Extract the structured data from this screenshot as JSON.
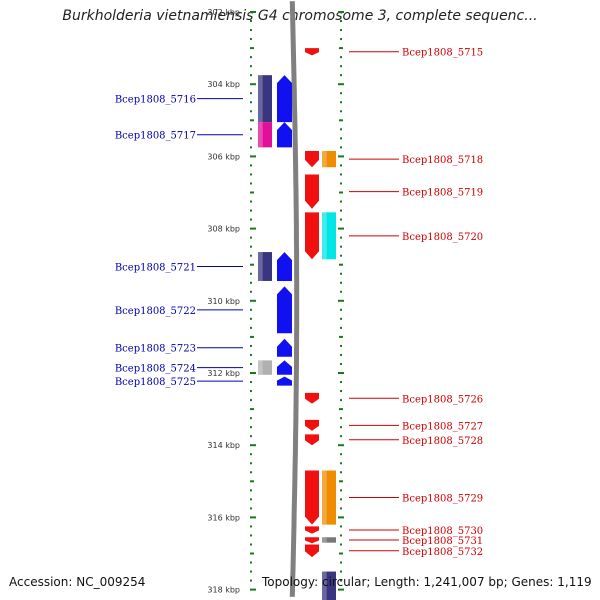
{
  "title": "Burkholderia vietnamiensis G4 chromosome 3, complete sequenc...",
  "footer": {
    "accession": "Accession: NC_009254",
    "topology": "Topology: circular; Length: 1,241,007 bp; Genes: 1,119"
  },
  "axis": {
    "unit": "kbp",
    "ticks": [
      {
        "label": "302 kbp",
        "kbp": 302
      },
      {
        "label": "304 kbp",
        "kbp": 304
      },
      {
        "label": "306 kbp",
        "kbp": 306
      },
      {
        "label": "308 kbp",
        "kbp": 308
      },
      {
        "label": "310 kbp",
        "kbp": 310
      },
      {
        "label": "312 kbp",
        "kbp": 312
      },
      {
        "label": "314 kbp",
        "kbp": 314
      },
      {
        "label": "316 kbp",
        "kbp": 316
      },
      {
        "label": "318 kbp",
        "kbp": 318
      }
    ]
  },
  "colors": {
    "minus_strand": "#1010f0",
    "plus_strand": "#f01010",
    "minus_label": "#0000b0",
    "plus_label": "#d00000",
    "tick": "#1a7a1a"
  },
  "genes": {
    "minus": [
      {
        "name": "Bcep1808_5716",
        "start": 303.75,
        "end": 305.05
      },
      {
        "name": "Bcep1808_5717",
        "start": 305.05,
        "end": 305.75
      },
      {
        "name": "Bcep1808_5721",
        "start": 308.65,
        "end": 309.45
      },
      {
        "name": "Bcep1808_5722",
        "start": 309.6,
        "end": 310.9
      },
      {
        "name": "Bcep1808_5723",
        "start": 311.05,
        "end": 311.55
      },
      {
        "name": "Bcep1808_5724",
        "start": 311.65,
        "end": 312.05
      },
      {
        "name": "Bcep1808_5725",
        "start": 312.1,
        "end": 312.35
      }
    ],
    "plus": [
      {
        "name": "Bcep1808_5715",
        "start": 303.0,
        "end": 303.2
      },
      {
        "name": "Bcep1808_5718",
        "start": 305.85,
        "end": 306.3
      },
      {
        "name": "Bcep1808_5719",
        "start": 306.5,
        "end": 307.45
      },
      {
        "name": "Bcep1808_5720",
        "start": 307.55,
        "end": 308.85
      },
      {
        "name": "Bcep1808_5726",
        "start": 312.55,
        "end": 312.85
      },
      {
        "name": "Bcep1808_5727",
        "start": 313.3,
        "end": 313.6
      },
      {
        "name": "Bcep1808_5728",
        "start": 313.7,
        "end": 314.0
      },
      {
        "name": "Bcep1808_5729",
        "start": 314.7,
        "end": 316.2
      },
      {
        "name": "Bcep1808_5730",
        "start": 316.25,
        "end": 316.45
      },
      {
        "name": "Bcep1808_5731",
        "start": 316.55,
        "end": 316.7
      },
      {
        "name": "Bcep1808_5732",
        "start": 316.75,
        "end": 317.1
      }
    ]
  },
  "features": [
    {
      "track": "outer-left",
      "start": 303.75,
      "end": 305.05,
      "color": "#3a3580"
    },
    {
      "track": "outer-left",
      "start": 305.05,
      "end": 305.75,
      "color": "#e0109a"
    },
    {
      "track": "outer-left",
      "start": 308.65,
      "end": 309.45,
      "color": "#3a3580"
    },
    {
      "track": "outer-left",
      "start": 311.65,
      "end": 312.05,
      "color": "#b0b0b0"
    },
    {
      "track": "outer-right",
      "start": 305.85,
      "end": 306.3,
      "color": "#f08c00"
    },
    {
      "track": "outer-right",
      "start": 307.55,
      "end": 308.85,
      "color": "#00e6e6"
    },
    {
      "track": "outer-right",
      "start": 314.7,
      "end": 316.2,
      "color": "#f08c00"
    },
    {
      "track": "outer-right",
      "start": 316.55,
      "end": 316.7,
      "color": "#777777"
    },
    {
      "track": "outer-right",
      "start": 317.5,
      "end": 318.3,
      "color": "#3a3580"
    }
  ]
}
